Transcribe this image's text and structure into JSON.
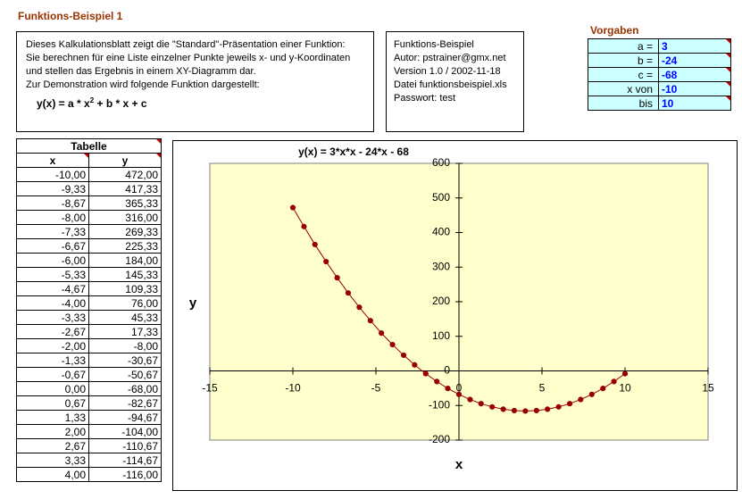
{
  "header": {
    "title": "Funktions-Beispiel 1"
  },
  "description": {
    "lines": [
      "Dieses Kalkulationsblatt zeigt die \"Standard\"-Präsentation einer Funktion:",
      "Sie berechnen für eine Liste einzelner Punkte jeweils x- und y-Koordinaten",
      "und stellen das Ergebnis in einem XY-Diagramm dar.",
      "Zur Demonstration wird folgende Funktion dargestellt:"
    ],
    "formula": {
      "pre": "y(x) = a * x",
      "sup": "2",
      "post": "+ b * x + c"
    }
  },
  "info": {
    "lines": [
      "Funktions-Beispiel",
      "Autor: pstrainer@gmx.net",
      "Version 1.0 / 2002-11-18",
      "Datei funktionsbeispiel.xls",
      "Passwort: test"
    ]
  },
  "vorgaben": {
    "title": "Vorgaben",
    "rows": [
      [
        "a =",
        "3"
      ],
      [
        "b =",
        "-24"
      ],
      [
        "c =",
        "-68"
      ],
      [
        "x von",
        "-10"
      ],
      [
        "bis",
        "10"
      ]
    ]
  },
  "tabelle": {
    "title": "Tabelle",
    "columns": [
      "x",
      "y"
    ],
    "rows": [
      [
        "-10,00",
        "472,00"
      ],
      [
        "-9,33",
        "417,33"
      ],
      [
        "-8,67",
        "365,33"
      ],
      [
        "-8,00",
        "316,00"
      ],
      [
        "-7,33",
        "269,33"
      ],
      [
        "-6,67",
        "225,33"
      ],
      [
        "-6,00",
        "184,00"
      ],
      [
        "-5,33",
        "145,33"
      ],
      [
        "-4,67",
        "109,33"
      ],
      [
        "-4,00",
        "76,00"
      ],
      [
        "-3,33",
        "45,33"
      ],
      [
        "-2,67",
        "17,33"
      ],
      [
        "-2,00",
        "-8,00"
      ],
      [
        "-1,33",
        "-30,67"
      ],
      [
        "-0,67",
        "-50,67"
      ],
      [
        "0,00",
        "-68,00"
      ],
      [
        "0,67",
        "-82,67"
      ],
      [
        "1,33",
        "-94,67"
      ],
      [
        "2,00",
        "-104,00"
      ],
      [
        "2,67",
        "-110,67"
      ],
      [
        "3,33",
        "-114,67"
      ],
      [
        "4,00",
        "-116,00"
      ]
    ]
  },
  "chart_data": {
    "type": "scatter",
    "title": "y(x) = 3*x*x - 24*x - 68",
    "x_label": "x",
    "y_label": "y",
    "x": [
      -10,
      -9.33,
      -8.67,
      -8,
      -7.33,
      -6.67,
      -6,
      -5.33,
      -4.67,
      -4,
      -3.33,
      -2.67,
      -2,
      -1.33,
      -0.67,
      0,
      0.67,
      1.33,
      2,
      2.67,
      3.33,
      4,
      4.67,
      5.33,
      6,
      6.67,
      7.33,
      8,
      8.67,
      9.33,
      10
    ],
    "series": [
      {
        "name": "y",
        "color": "#990000",
        "values": [
          472,
          417.33,
          365.33,
          316,
          269.33,
          225.33,
          184,
          145.33,
          109.33,
          76,
          45.33,
          17.33,
          -8,
          -30.67,
          -50.67,
          -68,
          -82.67,
          -94.67,
          -104,
          -110.67,
          -114.67,
          -116,
          -114.67,
          -110.67,
          -104,
          -94.67,
          -82.67,
          -68,
          -50.67,
          -30.67,
          -8
        ]
      }
    ],
    "xlim": [
      -15,
      15
    ],
    "xticks": [
      -15,
      -10,
      -5,
      0,
      5,
      10,
      15
    ],
    "ylim": [
      -200,
      600
    ],
    "yticks": [
      -200,
      -100,
      0,
      100,
      200,
      300,
      400,
      500,
      600
    ],
    "plot_background": "#ffffcc",
    "grid": false
  }
}
